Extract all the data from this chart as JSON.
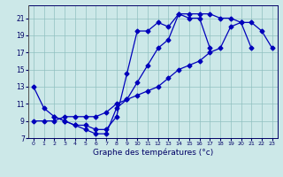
{
  "xlabel": "Graphe des températures (°c)",
  "bg_color": "#cce8e8",
  "line_color": "#0000bb",
  "marker": "D",
  "markersize": 2.5,
  "linewidth": 0.9,
  "xlim": [
    -0.5,
    23.5
  ],
  "ylim": [
    7,
    22.5
  ],
  "xticks": [
    0,
    1,
    2,
    3,
    4,
    5,
    6,
    7,
    8,
    9,
    10,
    11,
    12,
    13,
    14,
    15,
    16,
    17,
    18,
    19,
    20,
    21,
    22,
    23
  ],
  "yticks": [
    7,
    9,
    11,
    13,
    15,
    17,
    19,
    21
  ],
  "series1_x": [
    0,
    1,
    2,
    3,
    4,
    5,
    6,
    7,
    8,
    9,
    10,
    11,
    12,
    13,
    14,
    15,
    16,
    17,
    18,
    19,
    20,
    21
  ],
  "series1_y": [
    13,
    10.5,
    9.5,
    9.0,
    8.5,
    8.0,
    7.5,
    7.5,
    10.5,
    11.5,
    13.5,
    15.5,
    17.5,
    18.5,
    21.5,
    21.5,
    21.5,
    21.5,
    21.0,
    21.0,
    20.5,
    17.5
  ],
  "series2_x": [
    2,
    3,
    4,
    5,
    6,
    7,
    8,
    9,
    10,
    11,
    12,
    13,
    14,
    15,
    16,
    17
  ],
  "series2_y": [
    9.5,
    9.0,
    8.5,
    8.5,
    8.0,
    8.0,
    9.5,
    14.5,
    19.5,
    19.5,
    20.5,
    20.0,
    21.5,
    21.0,
    21.0,
    17.5
  ],
  "series3_x": [
    0,
    1,
    2,
    3,
    4,
    5,
    6,
    7,
    8,
    9,
    10,
    11,
    12,
    13,
    14,
    15,
    16,
    17,
    18,
    19,
    20,
    21,
    22,
    23
  ],
  "series3_y": [
    9.0,
    9.0,
    9.0,
    9.5,
    9.5,
    9.5,
    9.5,
    10.0,
    11.0,
    11.5,
    12.0,
    12.5,
    13.0,
    14.0,
    15.0,
    15.5,
    16.0,
    17.0,
    17.5,
    20.0,
    20.5,
    20.5,
    19.5,
    17.5
  ]
}
